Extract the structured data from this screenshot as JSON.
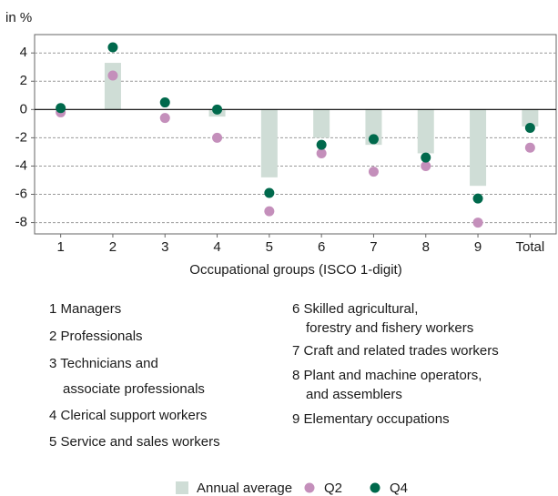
{
  "chart_data": {
    "type": "bar",
    "y_unit_label": "in %",
    "x_axis_label": "Occupational groups (ISCO 1-digit)",
    "categories": [
      "1",
      "2",
      "3",
      "4",
      "5",
      "6",
      "7",
      "8",
      "9",
      "Total"
    ],
    "series": [
      {
        "name": "Annual average",
        "color": "#cfddd6",
        "style": "bar",
        "values": [
          0,
          3.3,
          0,
          -0.5,
          -4.8,
          -2.0,
          -2.5,
          -3.1,
          -5.4,
          -1.2
        ]
      },
      {
        "name": "Q2",
        "color": "#c48fbb",
        "style": "dot",
        "values": [
          -0.2,
          2.4,
          -0.6,
          -2.0,
          -7.2,
          -3.1,
          -4.4,
          -4.0,
          -8.0,
          -2.7
        ]
      },
      {
        "name": "Q4",
        "color": "#00694c",
        "style": "dot",
        "values": [
          0.1,
          4.4,
          0.5,
          0.0,
          -5.9,
          -2.5,
          -2.1,
          -3.4,
          -6.3,
          -1.3
        ]
      }
    ],
    "ylim": [
      -8.8,
      5.3
    ],
    "yticks": [
      -8,
      -6,
      -4,
      -2,
      0,
      2,
      4
    ],
    "grid": true,
    "notes": [
      [
        "1 Managers"
      ],
      [
        "2 Professionals"
      ],
      [
        "3 Technicians and",
        "associate professionals"
      ],
      [
        "4 Clerical support workers"
      ],
      [
        "5 Service and sales workers"
      ],
      [
        "6 Skilled agricultural,",
        "forestry and fishery workers"
      ],
      [
        "7 Craft and related trades workers"
      ],
      [
        "8 Plant and machine operators,",
        "and assemblers"
      ],
      [
        "9 Elementary occupations"
      ]
    ]
  }
}
